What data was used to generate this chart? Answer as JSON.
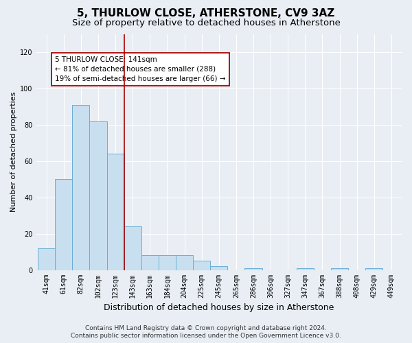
{
  "title1": "5, THURLOW CLOSE, ATHERSTONE, CV9 3AZ",
  "title2": "Size of property relative to detached houses in Atherstone",
  "xlabel": "Distribution of detached houses by size in Atherstone",
  "ylabel": "Number of detached properties",
  "categories": [
    "41sqm",
    "61sqm",
    "82sqm",
    "102sqm",
    "123sqm",
    "143sqm",
    "163sqm",
    "184sqm",
    "204sqm",
    "225sqm",
    "245sqm",
    "265sqm",
    "286sqm",
    "306sqm",
    "327sqm",
    "347sqm",
    "367sqm",
    "388sqm",
    "408sqm",
    "429sqm",
    "449sqm"
  ],
  "values": [
    12,
    50,
    91,
    82,
    64,
    24,
    8,
    8,
    8,
    5,
    2,
    0,
    1,
    0,
    0,
    1,
    0,
    1,
    0,
    1,
    0
  ],
  "bar_color": "#c8dff0",
  "bar_edge_color": "#6aaed6",
  "bar_width": 1.0,
  "property_line_color": "#aa0000",
  "annotation_text": "5 THURLOW CLOSE: 141sqm\n← 81% of detached houses are smaller (288)\n19% of semi-detached houses are larger (66) →",
  "annotation_box_color": "#aa0000",
  "annotation_box_facecolor": "#ffffff",
  "ylim": [
    0,
    130
  ],
  "yticks": [
    0,
    20,
    40,
    60,
    80,
    100,
    120
  ],
  "footer_line1": "Contains HM Land Registry data © Crown copyright and database right 2024.",
  "footer_line2": "Contains public sector information licensed under the Open Government Licence v3.0.",
  "background_color": "#e8eef4",
  "grid_color": "#ffffff",
  "title1_fontsize": 11,
  "title2_fontsize": 9.5,
  "xlabel_fontsize": 9,
  "ylabel_fontsize": 8,
  "annot_fontsize": 7.5,
  "tick_fontsize": 7,
  "footer_fontsize": 6.5
}
